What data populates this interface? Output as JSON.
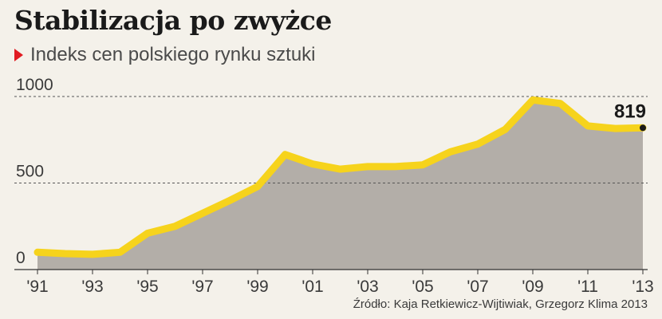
{
  "title": "Stabilizacja po zwyżce",
  "subtitle": "Indeks cen polskiego rynku sztuki",
  "source": "Źródło: Kaja Retkiewicz-Wijtiwiak, Grzegorz Klima 2013",
  "colors": {
    "line": "#f6d31c",
    "area": "#b3aea8",
    "marker": "#1a1a1a",
    "grid": "#555555",
    "accent": "#e11b22"
  },
  "icons": {
    "subtitle_marker": "red-triangle-icon"
  },
  "chart_data": {
    "type": "area",
    "title": "Stabilizacja po zwyżce",
    "subtitle": "Indeks cen polskiego rynku sztuki",
    "x": [
      1991,
      1992,
      1993,
      1994,
      1995,
      1996,
      1997,
      1998,
      1999,
      2000,
      2001,
      2002,
      2003,
      2004,
      2005,
      2006,
      2007,
      2008,
      2009,
      2010,
      2011,
      2012,
      2013
    ],
    "values": [
      100,
      92,
      88,
      100,
      210,
      250,
      325,
      400,
      480,
      665,
      610,
      580,
      595,
      595,
      605,
      680,
      725,
      810,
      980,
      960,
      830,
      815,
      819
    ],
    "x_tick_labels": [
      "'91",
      "'93",
      "'95",
      "'97",
      "'99",
      "'01",
      "'03",
      "'05",
      "'07",
      "'09",
      "'11",
      "'13"
    ],
    "x_ticks": [
      1991,
      1993,
      1995,
      1997,
      1999,
      2001,
      2003,
      2005,
      2007,
      2009,
      2011,
      2013
    ],
    "y_tick_labels": [
      "0",
      "500",
      "1000"
    ],
    "y_ticks": [
      0,
      500,
      1000
    ],
    "ylim": [
      0,
      1000
    ],
    "xlim": [
      1991,
      2013
    ],
    "end_label": "819",
    "grid": "horizontal dashed"
  }
}
